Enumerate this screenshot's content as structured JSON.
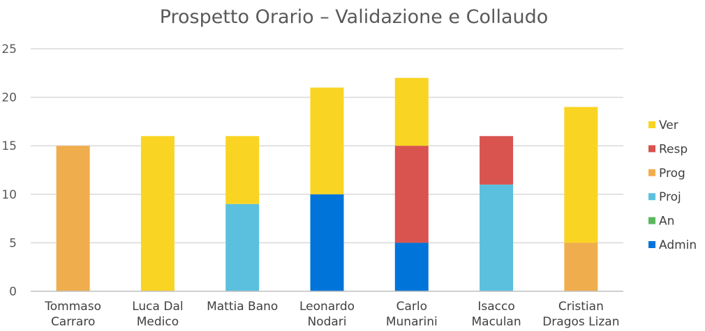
{
  "chart_data": {
    "type": "bar",
    "stacked": true,
    "title": "Prospetto Orario – Validazione e Collaudo",
    "xlabel": "",
    "ylabel": "",
    "ylim": [
      0,
      25
    ],
    "yticks": [
      0,
      5,
      10,
      15,
      20,
      25
    ],
    "grid": true,
    "legend": "right",
    "categories": [
      [
        "Tommaso",
        "Carraro"
      ],
      [
        "Luca Dal",
        "Medico"
      ],
      [
        "Mattia Bano"
      ],
      [
        "Leonardo",
        "Nodari"
      ],
      [
        "Carlo",
        "Munarini"
      ],
      [
        "Isacco",
        "Maculan"
      ],
      [
        "Cristian",
        "Dragos Lizan"
      ]
    ],
    "series": [
      {
        "name": "Admin",
        "color": "#0074d9",
        "values": [
          0,
          0,
          0,
          10,
          5,
          0,
          0
        ]
      },
      {
        "name": "An",
        "color": "#5cb85c",
        "values": [
          0,
          0,
          0,
          0,
          0,
          0,
          0
        ]
      },
      {
        "name": "Proj",
        "color": "#5bc0de",
        "values": [
          0,
          0,
          9,
          0,
          0,
          11,
          0
        ]
      },
      {
        "name": "Prog",
        "color": "#f0ad4e",
        "values": [
          15,
          0,
          0,
          0,
          0,
          0,
          5
        ]
      },
      {
        "name": "Resp",
        "color": "#d9534f",
        "values": [
          0,
          0,
          0,
          0,
          10,
          5,
          0
        ]
      },
      {
        "name": "Ver",
        "color": "#f9d423",
        "values": [
          0,
          16,
          7,
          11,
          7,
          0,
          14
        ]
      }
    ]
  }
}
